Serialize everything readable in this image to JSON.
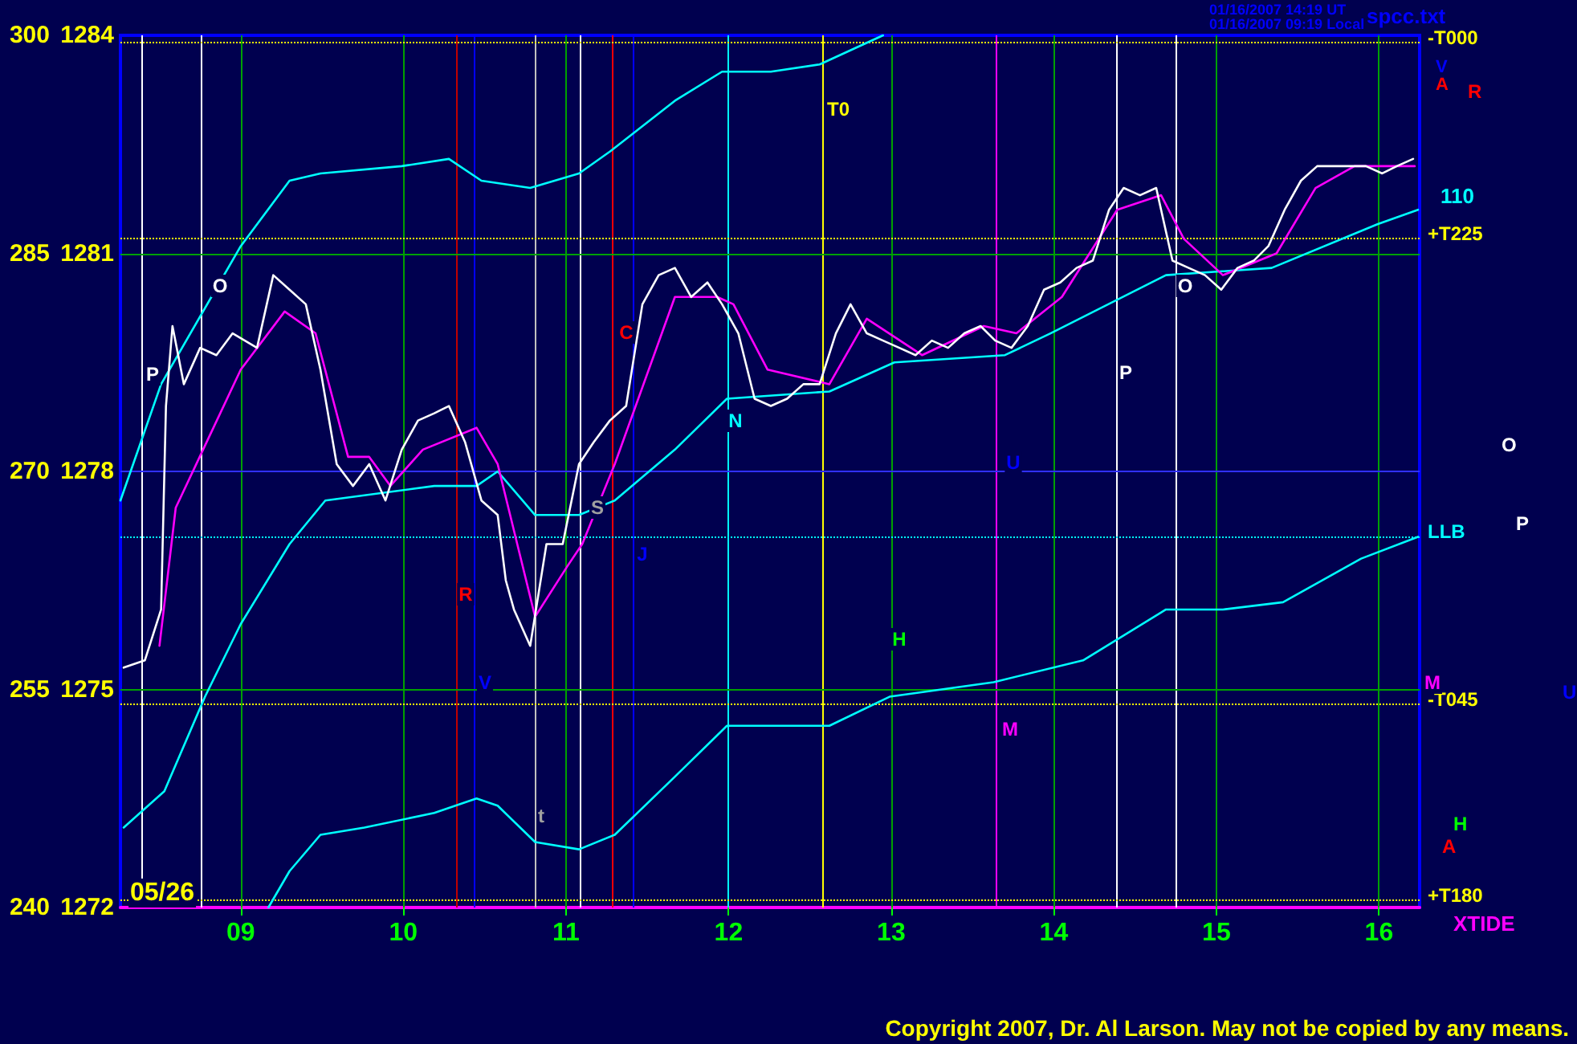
{
  "chart_data": {
    "type": "line",
    "xlim": [
      8.26,
      16.25
    ],
    "xticks": [
      {
        "value": 9,
        "label": "09"
      },
      10,
      11,
      12,
      13,
      14,
      15,
      16
    ],
    "ylim": [
      1272,
      1284
    ],
    "yticks": [
      1272,
      1275,
      1278,
      1281,
      1284
    ],
    "y2lim": [
      240,
      300
    ],
    "y2ticks": [
      240,
      255,
      270,
      285,
      300
    ],
    "grid": false,
    "marker": "none",
    "line_style": "solid",
    "series": [
      {
        "color": "#ffffff",
        "x": [
          8.28,
          8.41,
          8.51,
          8.54,
          8.58,
          8.65,
          8.75,
          8.85,
          8.95,
          9.1,
          9.2,
          9.3,
          9.4,
          9.49,
          9.59,
          9.69,
          9.79,
          9.89,
          9.99,
          10.09,
          10.19,
          10.28,
          10.38,
          10.48,
          10.58,
          10.63,
          10.68,
          10.78,
          10.88,
          10.98,
          11.08,
          11.17,
          11.27,
          11.37,
          11.47,
          11.57,
          11.67,
          11.77,
          11.87,
          11.96,
          12.06,
          12.16,
          12.26,
          12.36,
          12.46,
          12.56,
          12.66,
          12.75,
          12.85,
          12.95,
          13.05,
          13.15,
          13.25,
          13.35,
          13.45,
          13.55,
          13.64,
          13.74,
          13.84,
          13.94,
          14.04,
          14.14,
          14.24,
          14.34,
          14.43,
          14.53,
          14.63,
          14.73,
          14.83,
          14.93,
          15.03,
          15.13,
          15.23,
          15.32,
          15.42,
          15.52,
          15.62,
          15.72,
          15.82,
          15.92,
          16.02,
          16.11,
          16.21
        ],
        "values": [
          1275.3,
          1275.4,
          1276.1,
          1278.9,
          1280.0,
          1279.2,
          1279.7,
          1279.6,
          1279.9,
          1279.7,
          1280.7,
          1280.5,
          1280.3,
          1279.4,
          1278.1,
          1277.8,
          1278.1,
          1277.6,
          1278.3,
          1278.7,
          1278.8,
          1278.9,
          1278.4,
          1277.6,
          1277.4,
          1276.5,
          1276.1,
          1275.6,
          1277.0,
          1277.0,
          1278.1,
          1278.4,
          1278.7,
          1278.9,
          1280.3,
          1280.7,
          1280.8,
          1280.4,
          1280.6,
          1280.3,
          1279.9,
          1279.0,
          1278.9,
          1279.0,
          1279.2,
          1279.2,
          1279.9,
          1280.3,
          1279.9,
          1279.8,
          1279.7,
          1279.6,
          1279.8,
          1279.7,
          1279.9,
          1280.0,
          1279.8,
          1279.7,
          1280.0,
          1280.5,
          1280.6,
          1280.8,
          1280.9,
          1281.6,
          1281.9,
          1281.8,
          1281.9,
          1280.9,
          1280.8,
          1280.7,
          1280.5,
          1280.8,
          1280.9,
          1281.1,
          1281.6,
          1282.0,
          1282.2,
          1282.2,
          1282.2,
          1282.2,
          1282.1,
          1282.2,
          1282.3
        ]
      },
      {
        "color": "#ff00ff",
        "x": [
          8.5,
          8.6,
          9.0,
          9.27,
          9.46,
          9.66,
          9.79,
          9.92,
          10.12,
          10.45,
          10.58,
          10.81,
          11.01,
          11.1,
          11.3,
          11.67,
          11.93,
          12.03,
          12.24,
          12.62,
          12.85,
          13.19,
          13.57,
          13.77,
          14.05,
          14.39,
          14.66,
          14.8,
          15.04,
          15.37,
          15.61,
          15.85,
          16.22
        ],
        "values": [
          1275.6,
          1277.5,
          1279.4,
          1280.2,
          1279.9,
          1278.2,
          1278.2,
          1277.8,
          1278.3,
          1278.6,
          1278.1,
          1276.0,
          1276.7,
          1277.0,
          1278.1,
          1280.4,
          1280.4,
          1280.3,
          1279.4,
          1279.2,
          1280.1,
          1279.6,
          1280.0,
          1279.9,
          1280.4,
          1281.6,
          1281.8,
          1281.2,
          1280.7,
          1281.0,
          1281.9,
          1282.2,
          1282.2
        ]
      },
      {
        "color": "#00ffff",
        "x": [
          8.26,
          8.51,
          9.0,
          9.3,
          9.49,
          9.99,
          10.28,
          10.48,
          10.78,
          11.08,
          11.27,
          11.67,
          11.96,
          12.26,
          12.56,
          12.95
        ],
        "values": [
          1277.6,
          1279.2,
          1281.1,
          1282.0,
          1282.1,
          1282.2,
          1282.3,
          1282.0,
          1281.9,
          1282.1,
          1282.4,
          1283.1,
          1283.5,
          1283.5,
          1283.6,
          1284.0
        ]
      },
      {
        "color": "#00ffff",
        "x": [
          8.28,
          8.53,
          8.78,
          9.0,
          9.3,
          9.52,
          10.19,
          10.45,
          10.58,
          10.81,
          11.08,
          11.3,
          11.67,
          11.99,
          12.62,
          13.02,
          13.7,
          13.98,
          14.69,
          15.34,
          15.99,
          16.24
        ],
        "values": [
          1273.1,
          1273.6,
          1274.9,
          1275.9,
          1277.0,
          1277.6,
          1277.8,
          1277.8,
          1278.0,
          1277.4,
          1277.4,
          1277.6,
          1278.3,
          1279.0,
          1279.1,
          1279.5,
          1279.6,
          1279.9,
          1280.7,
          1280.8,
          1281.4,
          1281.6
        ]
      },
      {
        "color": "#00ffff",
        "x": [
          9.17,
          9.3,
          9.49,
          9.76,
          10.19,
          10.45,
          10.58,
          10.81,
          11.08,
          11.3,
          11.67,
          11.99,
          12.11,
          12.62,
          12.99,
          13.63,
          14.18,
          14.69,
          15.04,
          15.41,
          15.89,
          16.24
        ],
        "values": [
          1272.0,
          1272.5,
          1273.0,
          1273.1,
          1273.3,
          1273.5,
          1273.4,
          1272.9,
          1272.8,
          1273.0,
          1273.8,
          1274.5,
          1274.5,
          1274.5,
          1274.9,
          1275.1,
          1275.4,
          1276.1,
          1276.1,
          1276.2,
          1276.8,
          1277.1
        ]
      }
    ],
    "ref_lines": [
      {
        "axis": "x",
        "value": 8.39,
        "color": "#ffffff"
      },
      {
        "axis": "x",
        "value": 8.76,
        "color": "#ffffff"
      },
      {
        "axis": "x",
        "value": 9.0,
        "color": "#00a000"
      },
      {
        "axis": "x",
        "value": 10.0,
        "color": "#00a000"
      },
      {
        "axis": "x",
        "value": 10.33,
        "color": "#c00000"
      },
      {
        "axis": "x",
        "value": 10.44,
        "color": "#0000ff"
      },
      {
        "axis": "x",
        "value": 10.81,
        "color": "#c0c0c0"
      },
      {
        "axis": "x",
        "value": 11.0,
        "color": "#00a000"
      },
      {
        "axis": "x",
        "value": 11.09,
        "color": "#ffffff"
      },
      {
        "axis": "x",
        "value": 11.28,
        "color": "#ff0000"
      },
      {
        "axis": "x",
        "value": 11.41,
        "color": "#0000ff"
      },
      {
        "axis": "x",
        "value": 12.0,
        "color": "#00ffff"
      },
      {
        "axis": "x",
        "value": 12.58,
        "color": "#ffff00"
      },
      {
        "axis": "x",
        "value": 13.0,
        "color": "#00a000"
      },
      {
        "axis": "x",
        "value": 13.65,
        "color": "#ff00ff"
      },
      {
        "axis": "x",
        "value": 14.0,
        "color": "#00a000"
      },
      {
        "axis": "x",
        "value": 14.39,
        "color": "#ffffff"
      },
      {
        "axis": "x",
        "value": 14.75,
        "color": "#ffffff"
      },
      {
        "axis": "x",
        "value": 15.0,
        "color": "#00a000"
      },
      {
        "axis": "x",
        "value": 16.0,
        "color": "#00a000"
      },
      {
        "axis": "y",
        "value": 1281,
        "color": "#00a000"
      },
      {
        "axis": "y",
        "value": 1275,
        "color": "#00a000"
      },
      {
        "axis": "y",
        "value": 1278,
        "color": "#3030ff"
      },
      {
        "axis": "y",
        "value": 1283.9,
        "label": "-T000",
        "color": "#ffff00",
        "line_style": "dotted"
      },
      {
        "axis": "y",
        "value": 1281.2,
        "label": "+T225",
        "color": "#ffff00",
        "line_style": "dotted"
      },
      {
        "axis": "y",
        "value": 1277.1,
        "label": "LLB",
        "color": "#00ffff",
        "line_style": "dotted"
      },
      {
        "axis": "y",
        "value": 1274.8,
        "label": "-T045",
        "color": "#ffff00",
        "line_style": "dotted"
      },
      {
        "axis": "y",
        "value": 1272.1,
        "label": "+T180",
        "color": "#ffff00",
        "line_style": "dotted"
      }
    ],
    "annotations": [
      "P",
      "O",
      "R",
      "V",
      "t",
      "S",
      "C",
      "J",
      "N",
      "T0",
      "H",
      "U",
      "M",
      "P",
      "O",
      "01/16/2007 14:19 UT",
      "01/16/2007 09:19 Local",
      "spcc.txt",
      "05/26",
      "110",
      "XTIDE",
      "R",
      "O",
      "P",
      "U",
      "M",
      "H",
      "A",
      "V",
      "A",
      "Copyright 2007, Dr. Al Larson. May not be copied by any means."
    ]
  }
}
